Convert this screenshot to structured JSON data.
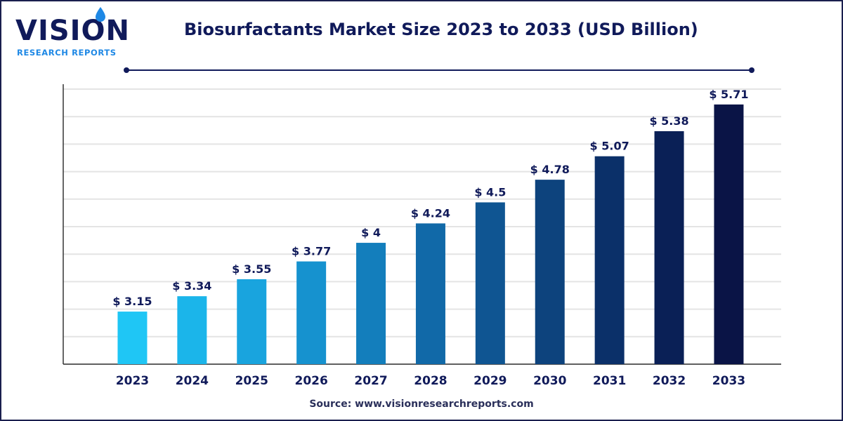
{
  "logo": {
    "word": "VISION",
    "subtitle": "RESEARCH REPORTS"
  },
  "source": "Source: www.visionresearchreports.com",
  "chart_data": {
    "type": "bar",
    "title": "Biosurfactants Market Size 2023 to 2033 (USD Billion)",
    "xlabel": "",
    "ylabel": "",
    "categories": [
      "2023",
      "2024",
      "2025",
      "2026",
      "2027",
      "2028",
      "2029",
      "2030",
      "2031",
      "2032",
      "2033"
    ],
    "values": [
      3.15,
      3.34,
      3.55,
      3.77,
      4,
      4.24,
      4.5,
      4.78,
      5.07,
      5.38,
      5.71
    ],
    "labels": [
      "$ 3.15",
      "$ 3.34",
      "$ 3.55",
      "$ 3.77",
      "$ 4",
      "$ 4.24",
      "$ 4.5",
      "$ 4.78",
      "$ 5.07",
      "$ 5.38",
      "$ 5.71"
    ],
    "ylim": [
      2.5,
      5.9
    ],
    "grid": true,
    "colors": [
      "#1fc6f5",
      "#1bb5ea",
      "#19a4de",
      "#1692cf",
      "#137ebc",
      "#1169a8",
      "#0f5592",
      "#0d437d",
      "#0b3069",
      "#0a2056",
      "#0a1446"
    ]
  }
}
